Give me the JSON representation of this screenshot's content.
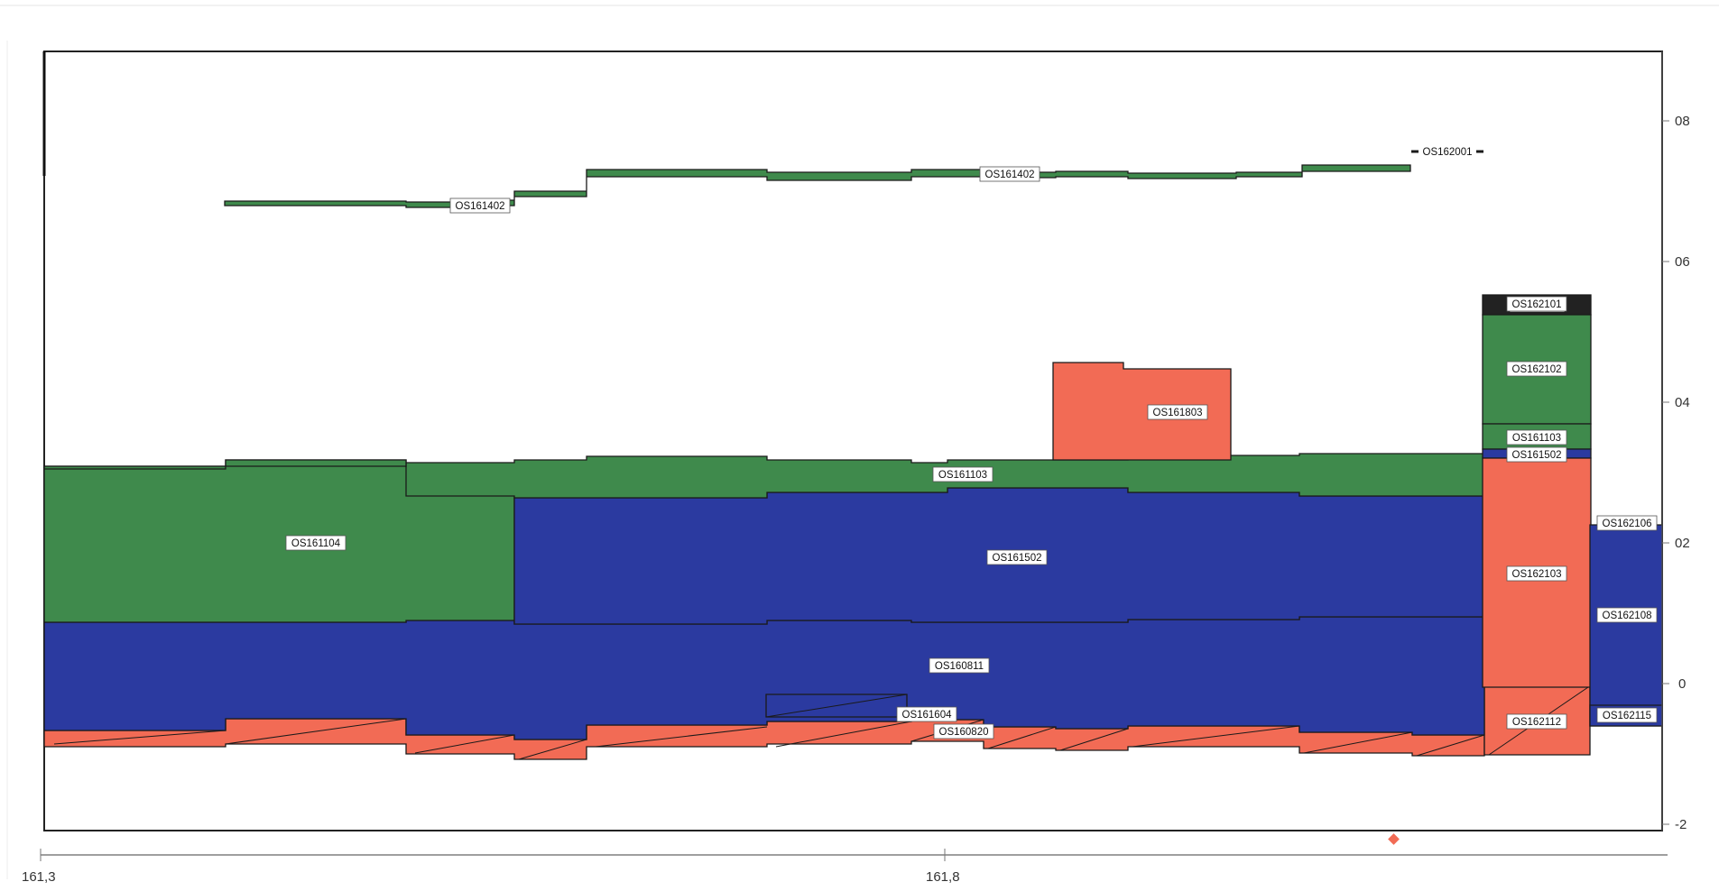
{
  "colors": {
    "green": "#3f8a4c",
    "blue": "#2b3aa0",
    "red": "#f26b55",
    "outline": "#1a1a1a",
    "marker": "#f26b55"
  },
  "axes": {
    "x_ticks": [
      "161,3",
      "161,8"
    ],
    "y_ticks": [
      "08",
      "06",
      "04",
      "02",
      "0",
      "-2"
    ]
  },
  "layers": [
    {
      "label": "OS161402",
      "color": "green"
    },
    {
      "label": "OS161402",
      "color": "green"
    },
    {
      "label": "OS162001",
      "color": "green"
    },
    {
      "label": "OS162101",
      "color": "outline"
    },
    {
      "label": "OS162102",
      "color": "green"
    },
    {
      "label": "OS161803",
      "color": "red"
    },
    {
      "label": "OS161103",
      "color": "green"
    },
    {
      "label": "OS161103",
      "color": "green"
    },
    {
      "label": "OS161502",
      "color": "blue"
    },
    {
      "label": "OS161104",
      "color": "green"
    },
    {
      "label": "OS161502",
      "color": "blue"
    },
    {
      "label": "OS162106",
      "color": "blue"
    },
    {
      "label": "OS162103",
      "color": "red"
    },
    {
      "label": "OS162108",
      "color": "blue"
    },
    {
      "label": "OS160811",
      "color": "blue"
    },
    {
      "label": "OS161604",
      "color": "red"
    },
    {
      "label": "OS160820",
      "color": "red"
    },
    {
      "label": "OS162112",
      "color": "red"
    },
    {
      "label": "OS162115",
      "color": "blue"
    }
  ]
}
